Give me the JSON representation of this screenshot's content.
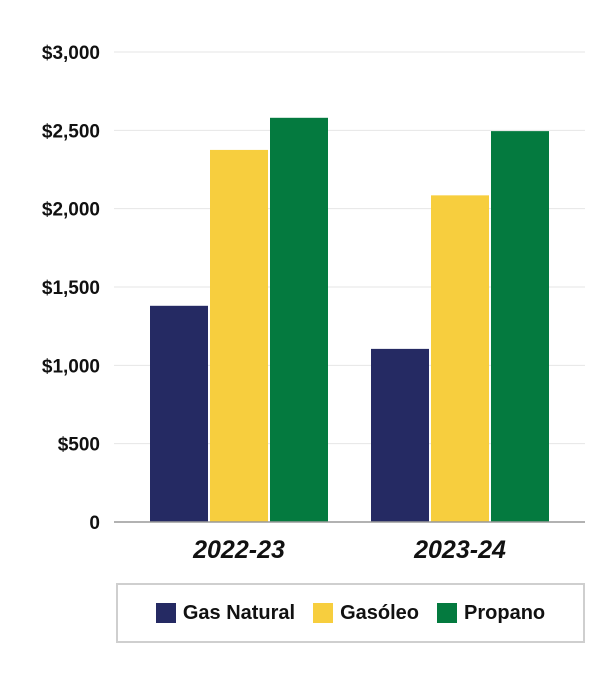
{
  "chart_data": {
    "type": "bar",
    "categories": [
      "2022-23",
      "2023-24"
    ],
    "series": [
      {
        "name": "Gas Natural",
        "color": "#252a63",
        "values": [
          1380,
          1105
        ]
      },
      {
        "name": "Gasóleo",
        "color": "#f7ce3e",
        "values": [
          2375,
          2085
        ]
      },
      {
        "name": "Propano",
        "color": "#047a3f",
        "values": [
          2580,
          2495
        ]
      }
    ],
    "yticks": [
      {
        "value": 0,
        "label": "0"
      },
      {
        "value": 500,
        "label": "$500"
      },
      {
        "value": 1000,
        "label": "$1,000"
      },
      {
        "value": 1500,
        "label": "$1,500"
      },
      {
        "value": 2000,
        "label": "$2,000"
      },
      {
        "value": 2500,
        "label": "$2,500"
      },
      {
        "value": 3000,
        "label": "$3,000"
      }
    ],
    "ylim": [
      0,
      3000
    ],
    "grid": true,
    "legend_position": "bottom"
  }
}
